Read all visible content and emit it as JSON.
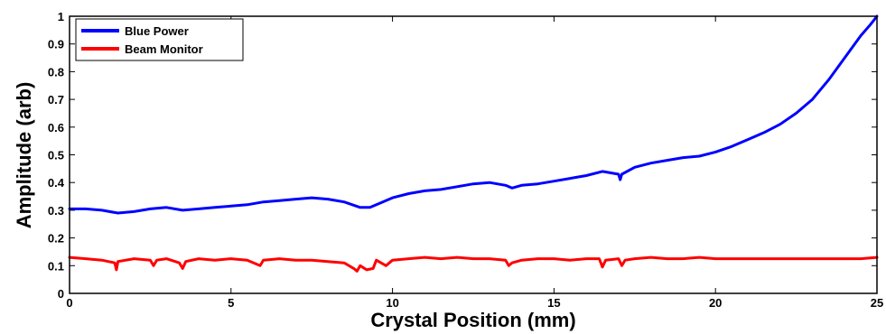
{
  "chart_data": {
    "type": "line",
    "title": "",
    "xlabel": "Crystal Position (mm)",
    "ylabel": "Amplitude (arb)",
    "xlim": [
      0,
      25
    ],
    "ylim": [
      0,
      1
    ],
    "xticks": [
      0,
      5,
      10,
      15,
      20,
      25
    ],
    "yticks": [
      0,
      0.1,
      0.2,
      0.3,
      0.4,
      0.5,
      0.6,
      0.7,
      0.8,
      0.9,
      1
    ],
    "ytick_labels": [
      "0",
      "0.1",
      "0.2",
      "0.3",
      "0.4",
      "0.5",
      "0.6",
      "0.7",
      "0.8",
      "0.9",
      "1"
    ],
    "grid": false,
    "legend_position": "top-left",
    "series": [
      {
        "name": "Blue Power",
        "color": "#0000ff",
        "x": [
          0,
          0.5,
          1.0,
          1.5,
          2.0,
          2.5,
          3.0,
          3.5,
          4.0,
          4.5,
          5.0,
          5.5,
          6.0,
          6.5,
          7.0,
          7.5,
          8.0,
          8.5,
          9.0,
          9.3,
          9.6,
          10.0,
          10.5,
          11.0,
          11.5,
          12.0,
          12.5,
          13.0,
          13.5,
          13.7,
          14.0,
          14.5,
          15.0,
          15.5,
          16.0,
          16.5,
          17.0,
          17.05,
          17.1,
          17.5,
          18.0,
          18.5,
          19.0,
          19.5,
          20.0,
          20.5,
          21.0,
          21.5,
          22.0,
          22.5,
          23.0,
          23.5,
          24.0,
          24.5,
          24.8,
          25.0
        ],
        "y": [
          0.305,
          0.305,
          0.3,
          0.29,
          0.295,
          0.305,
          0.31,
          0.3,
          0.305,
          0.31,
          0.315,
          0.32,
          0.33,
          0.335,
          0.34,
          0.345,
          0.34,
          0.33,
          0.31,
          0.31,
          0.325,
          0.345,
          0.36,
          0.37,
          0.375,
          0.385,
          0.395,
          0.4,
          0.39,
          0.38,
          0.39,
          0.395,
          0.405,
          0.415,
          0.425,
          0.44,
          0.43,
          0.41,
          0.43,
          0.455,
          0.47,
          0.48,
          0.49,
          0.495,
          0.51,
          0.53,
          0.555,
          0.58,
          0.61,
          0.65,
          0.7,
          0.77,
          0.85,
          0.93,
          0.97,
          1.0
        ]
      },
      {
        "name": "Beam Monitor",
        "color": "#ff0000",
        "x": [
          0,
          0.5,
          1.0,
          1.4,
          1.45,
          1.5,
          2.0,
          2.5,
          2.6,
          2.7,
          3.0,
          3.4,
          3.5,
          3.6,
          4.0,
          4.5,
          5.0,
          5.5,
          5.9,
          6.0,
          6.5,
          7.0,
          7.5,
          8.0,
          8.5,
          8.8,
          8.9,
          9.0,
          9.2,
          9.4,
          9.5,
          9.8,
          10.0,
          10.5,
          11.0,
          11.5,
          12.0,
          12.5,
          13.0,
          13.5,
          13.6,
          13.7,
          14.0,
          14.5,
          15.0,
          15.5,
          16.0,
          16.4,
          16.5,
          16.6,
          17.0,
          17.1,
          17.2,
          17.5,
          18.0,
          18.5,
          19.0,
          19.5,
          20.0,
          20.5,
          21.0,
          21.5,
          22.0,
          22.5,
          23.0,
          23.5,
          24.0,
          24.5,
          25.0
        ],
        "y": [
          0.13,
          0.125,
          0.12,
          0.11,
          0.085,
          0.115,
          0.125,
          0.12,
          0.1,
          0.12,
          0.125,
          0.11,
          0.09,
          0.115,
          0.125,
          0.12,
          0.125,
          0.12,
          0.1,
          0.12,
          0.125,
          0.12,
          0.12,
          0.115,
          0.11,
          0.09,
          0.08,
          0.1,
          0.085,
          0.09,
          0.12,
          0.1,
          0.12,
          0.125,
          0.13,
          0.125,
          0.13,
          0.125,
          0.125,
          0.12,
          0.1,
          0.11,
          0.12,
          0.125,
          0.125,
          0.12,
          0.125,
          0.125,
          0.095,
          0.12,
          0.125,
          0.1,
          0.12,
          0.125,
          0.13,
          0.125,
          0.125,
          0.13,
          0.125,
          0.125,
          0.125,
          0.125,
          0.125,
          0.125,
          0.125,
          0.125,
          0.125,
          0.125,
          0.13
        ]
      }
    ]
  }
}
